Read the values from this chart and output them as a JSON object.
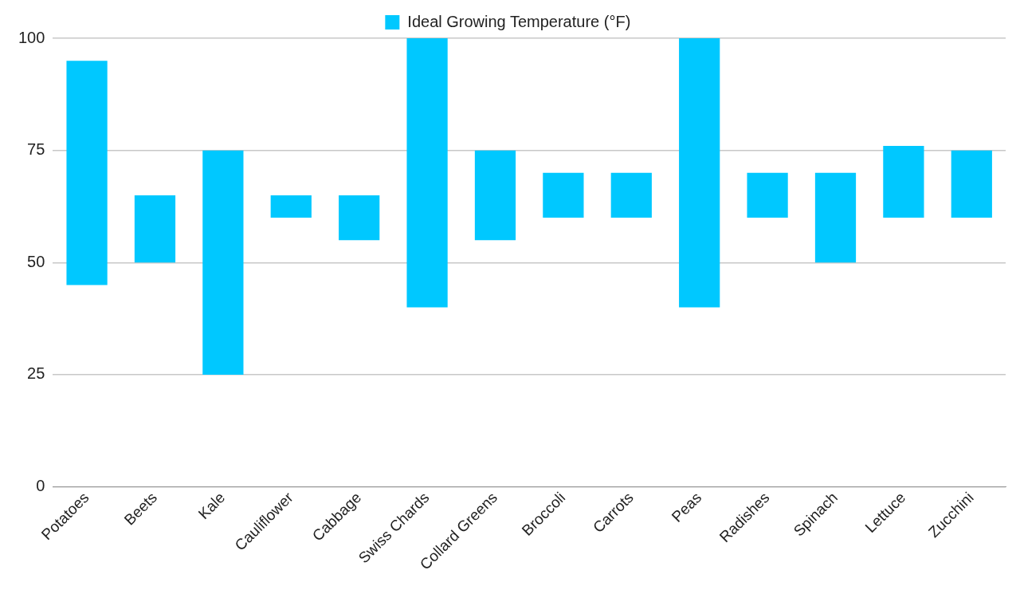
{
  "chart_data": {
    "type": "bar",
    "categories": [
      "Potatoes",
      "Beets",
      "Kale",
      "Cauliflower",
      "Cabbage",
      "Swiss Chards",
      "Collard Greens",
      "Broccoli",
      "Carrots",
      "Peas",
      "Radishes",
      "Spinach",
      "Lettuce",
      "Zucchini"
    ],
    "series": [
      {
        "name": "Ideal Growing Temperature (°F)",
        "color": "#00c8ff",
        "values": [
          50,
          15,
          50,
          5,
          10,
          60,
          20,
          10,
          10,
          60,
          10,
          20,
          16,
          15
        ],
        "base": [
          45,
          50,
          25,
          60,
          55,
          40,
          55,
          60,
          60,
          40,
          60,
          50,
          60,
          60
        ]
      }
    ],
    "ylim": [
      0,
      100
    ],
    "yticks": [
      0,
      25,
      50,
      75,
      100
    ],
    "grid": "y",
    "legend": "top"
  }
}
